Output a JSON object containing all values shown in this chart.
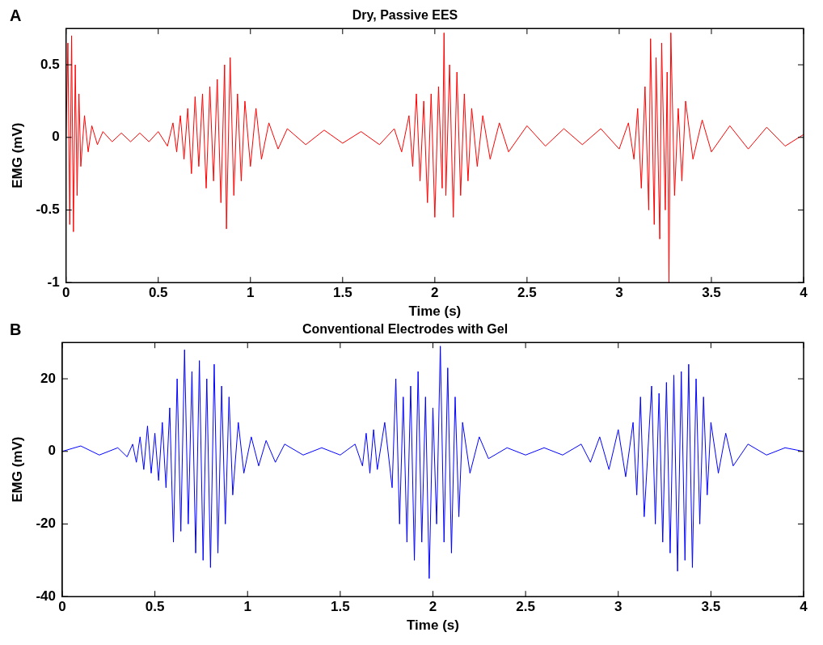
{
  "chart_data": [
    {
      "type": "line",
      "title": "Dry, Passive EES",
      "xlabel": "Time (s)",
      "ylabel": "EMG (mV)",
      "annotations": [
        "A"
      ],
      "xlim": [
        0,
        4
      ],
      "xticks": [
        0,
        0.5,
        1,
        1.5,
        2,
        2.5,
        3,
        3.5,
        4
      ],
      "ylim": [
        -1,
        0.75
      ],
      "yticks": [
        -1,
        -0.5,
        0,
        0.5
      ],
      "grid": false,
      "legend": false,
      "marker": "none",
      "x": [
        0,
        0.01,
        0.02,
        0.03,
        0.04,
        0.05,
        0.06,
        0.07,
        0.08,
        0.1,
        0.12,
        0.14,
        0.17,
        0.2,
        0.25,
        0.3,
        0.35,
        0.4,
        0.45,
        0.5,
        0.55,
        0.58,
        0.6,
        0.62,
        0.64,
        0.66,
        0.68,
        0.7,
        0.72,
        0.74,
        0.76,
        0.78,
        0.8,
        0.82,
        0.84,
        0.86,
        0.87,
        0.89,
        0.91,
        0.93,
        0.95,
        0.97,
        1.0,
        1.03,
        1.06,
        1.1,
        1.15,
        1.2,
        1.3,
        1.4,
        1.5,
        1.6,
        1.7,
        1.78,
        1.82,
        1.86,
        1.88,
        1.9,
        1.92,
        1.94,
        1.96,
        1.98,
        2.0,
        2.02,
        2.04,
        2.05,
        2.06,
        2.08,
        2.1,
        2.12,
        2.14,
        2.16,
        2.18,
        2.2,
        2.23,
        2.26,
        2.3,
        2.35,
        2.4,
        2.5,
        2.6,
        2.7,
        2.8,
        2.9,
        3.0,
        3.05,
        3.08,
        3.1,
        3.12,
        3.14,
        3.16,
        3.17,
        3.19,
        3.2,
        3.22,
        3.23,
        3.25,
        3.26,
        3.27,
        3.28,
        3.3,
        3.32,
        3.34,
        3.36,
        3.4,
        3.45,
        3.5,
        3.6,
        3.7,
        3.8,
        3.9,
        4.0
      ],
      "series": [
        {
          "color": "#ff0000",
          "values": [
            0,
            0.65,
            -0.6,
            0.7,
            -0.65,
            0.5,
            -0.4,
            0.3,
            -0.2,
            0.15,
            -0.1,
            0.08,
            -0.05,
            0.04,
            -0.03,
            0.03,
            -0.03,
            0.03,
            -0.03,
            0.04,
            -0.06,
            0.1,
            -0.1,
            0.15,
            -0.15,
            0.2,
            -0.25,
            0.28,
            -0.2,
            0.3,
            -0.35,
            0.35,
            -0.3,
            0.4,
            -0.45,
            0.5,
            -0.63,
            0.55,
            -0.4,
            0.3,
            -0.3,
            0.25,
            -0.2,
            0.2,
            -0.15,
            0.1,
            -0.08,
            0.06,
            -0.05,
            0.05,
            -0.04,
            0.04,
            -0.05,
            0.06,
            -0.1,
            0.15,
            -0.2,
            0.3,
            -0.3,
            0.25,
            -0.45,
            0.3,
            -0.55,
            0.35,
            -0.35,
            0.72,
            -0.4,
            0.5,
            -0.55,
            0.45,
            -0.4,
            0.3,
            -0.3,
            0.2,
            -0.2,
            0.15,
            -0.15,
            0.1,
            -0.1,
            0.08,
            -0.06,
            0.06,
            -0.05,
            0.06,
            -0.08,
            0.1,
            -0.15,
            0.2,
            -0.35,
            0.35,
            -0.5,
            0.68,
            -0.6,
            0.55,
            -0.7,
            0.65,
            -0.5,
            0.45,
            -1.0,
            0.72,
            -0.4,
            0.2,
            -0.3,
            0.25,
            -0.15,
            0.12,
            -0.1,
            0.08,
            -0.08,
            0.07,
            -0.06,
            0.02
          ]
        }
      ]
    },
    {
      "type": "line",
      "title": "Conventional Electrodes with Gel",
      "xlabel": "Time (s)",
      "ylabel": "EMG (mV)",
      "annotations": [
        "B"
      ],
      "xlim": [
        0,
        4
      ],
      "xticks": [
        0,
        0.5,
        1,
        1.5,
        2,
        2.5,
        3,
        3.5,
        4
      ],
      "ylim": [
        -40,
        30
      ],
      "yticks": [
        -40,
        -20,
        0,
        20
      ],
      "grid": false,
      "legend": false,
      "marker": "none",
      "x": [
        0,
        0.1,
        0.2,
        0.3,
        0.35,
        0.38,
        0.4,
        0.42,
        0.44,
        0.46,
        0.48,
        0.5,
        0.52,
        0.54,
        0.56,
        0.58,
        0.6,
        0.62,
        0.64,
        0.66,
        0.68,
        0.7,
        0.72,
        0.74,
        0.76,
        0.78,
        0.8,
        0.82,
        0.84,
        0.86,
        0.88,
        0.9,
        0.92,
        0.95,
        0.98,
        1.02,
        1.06,
        1.1,
        1.15,
        1.2,
        1.3,
        1.4,
        1.5,
        1.58,
        1.62,
        1.64,
        1.66,
        1.68,
        1.7,
        1.74,
        1.78,
        1.8,
        1.82,
        1.84,
        1.86,
        1.88,
        1.9,
        1.92,
        1.94,
        1.96,
        1.98,
        2.0,
        2.02,
        2.04,
        2.06,
        2.08,
        2.1,
        2.12,
        2.14,
        2.16,
        2.2,
        2.25,
        2.3,
        2.4,
        2.5,
        2.6,
        2.7,
        2.8,
        2.85,
        2.9,
        2.95,
        3.0,
        3.04,
        3.08,
        3.1,
        3.12,
        3.14,
        3.18,
        3.2,
        3.22,
        3.24,
        3.26,
        3.28,
        3.3,
        3.32,
        3.34,
        3.36,
        3.38,
        3.4,
        3.42,
        3.44,
        3.46,
        3.48,
        3.5,
        3.54,
        3.58,
        3.62,
        3.7,
        3.8,
        3.9,
        4.0
      ],
      "series": [
        {
          "color": "#0000ff",
          "values": [
            0,
            1.5,
            -1,
            1,
            -1.5,
            2,
            -3,
            4,
            -5,
            7,
            -6,
            5,
            -8,
            8,
            -10,
            12,
            -25,
            20,
            -22,
            28,
            -20,
            22,
            -28,
            25,
            -30,
            20,
            -32,
            24,
            -28,
            18,
            -20,
            15,
            -12,
            8,
            -6,
            4,
            -4,
            3,
            -3,
            2,
            -1,
            1,
            -1,
            2,
            -4,
            5,
            -6,
            6,
            -5,
            8,
            -10,
            20,
            -20,
            15,
            -25,
            18,
            -30,
            22,
            -25,
            15,
            -35,
            12,
            -20,
            29,
            -25,
            23,
            -28,
            15,
            -18,
            8,
            -6,
            4,
            -2,
            1,
            -1,
            1,
            -1,
            2,
            -3,
            4,
            -5,
            6,
            -7,
            8,
            -12,
            15,
            -18,
            18,
            -20,
            16,
            -25,
            19,
            -28,
            21,
            -33,
            22,
            -30,
            24,
            -32,
            20,
            -20,
            15,
            -12,
            8,
            -6,
            5,
            -4,
            2,
            -1,
            1,
            0
          ]
        }
      ]
    }
  ]
}
